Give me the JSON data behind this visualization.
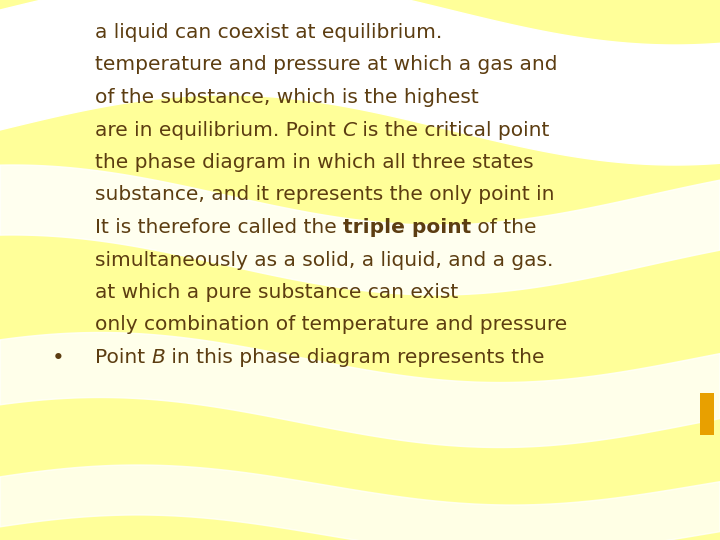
{
  "background_color": "#FFFF99",
  "text_color": "#5C3D11",
  "wave_color": "#FFFFFF",
  "accent_rect_color": "#E8A000",
  "font_size": 14.5,
  "figsize": [
    7.2,
    5.4
  ],
  "dpi": 100,
  "lines": [
    [
      [
        "Point ",
        false,
        false
      ],
      [
        "B",
        false,
        true
      ],
      [
        " in this phase diagram represents the",
        false,
        false
      ]
    ],
    [
      [
        "only combination of temperature and pressure",
        false,
        false
      ]
    ],
    [
      [
        "at which a pure substance can exist",
        false,
        false
      ]
    ],
    [
      [
        "simultaneously as a solid, a liquid, and a gas.",
        false,
        false
      ]
    ],
    [
      [
        "It is therefore called the ",
        false,
        false
      ],
      [
        "triple point",
        true,
        false
      ],
      [
        " of the",
        false,
        false
      ]
    ],
    [
      [
        "substance, and it represents the only point in",
        false,
        false
      ]
    ],
    [
      [
        "the phase diagram in which all three states",
        false,
        false
      ]
    ],
    [
      [
        "are in equilibrium. Point ",
        false,
        false
      ],
      [
        "C",
        false,
        true
      ],
      [
        " is the critical point",
        false,
        false
      ]
    ],
    [
      [
        "of the substance, which is the highest",
        false,
        false
      ]
    ],
    [
      [
        "temperature and pressure at which a gas and",
        false,
        false
      ]
    ],
    [
      [
        "a liquid can coexist at equilibrium.",
        false,
        false
      ]
    ]
  ]
}
